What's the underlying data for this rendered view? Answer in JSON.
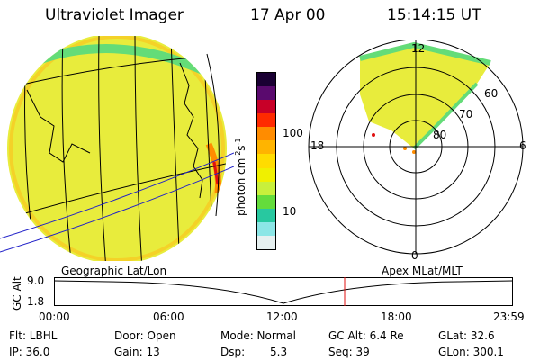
{
  "header": {
    "title": "Ultraviolet Imager",
    "date": "17 Apr 00",
    "time": "15:14:15 UT"
  },
  "colorbar": {
    "label": "photon cm",
    "label_sup1": "-2",
    "label_s": "s",
    "label_sup2": "-1",
    "ticks": [
      "100",
      "10"
    ],
    "colors": [
      "#1a0033",
      "#5a0a6e",
      "#c80028",
      "#ff2a00",
      "#ff8c00",
      "#ffb400",
      "#ffdc00",
      "#f0f000",
      "#c8f03c",
      "#64dc3c",
      "#28c8a0",
      "#8ce6e6",
      "#e6f0f0"
    ]
  },
  "labels": {
    "geo": "Geographic Lat/Lon",
    "apex": "Apex MLat/MLT"
  },
  "polar": {
    "mlt": [
      "12",
      "18",
      "6",
      "0"
    ],
    "mlat": [
      "60",
      "70",
      "80"
    ]
  },
  "altitude_plot": {
    "axis_label": "GC Alt",
    "y_ticks": [
      "9.0",
      "1.8"
    ],
    "time_ticks": [
      "00:00",
      "06:00",
      "12:00",
      "18:00",
      "23:59"
    ]
  },
  "info": {
    "flt": "Flt: LBHL",
    "ip": "IP: 36.0",
    "door": "Door: Open",
    "gain": "Gain: 13",
    "mode": "Mode: Normal",
    "dsp_label": "Dsp:",
    "dsp_value": "5.3",
    "gcalt": "GC Alt: 6.4 Re",
    "seq": "Seq: 39",
    "glat": "GLat:  32.6",
    "glon": "GLon: 300.1"
  },
  "colors": {
    "aurora_fill": "#e8ec3c",
    "limb": "#64dc78",
    "nightside": "#ffb400",
    "marker": "#e01010"
  }
}
